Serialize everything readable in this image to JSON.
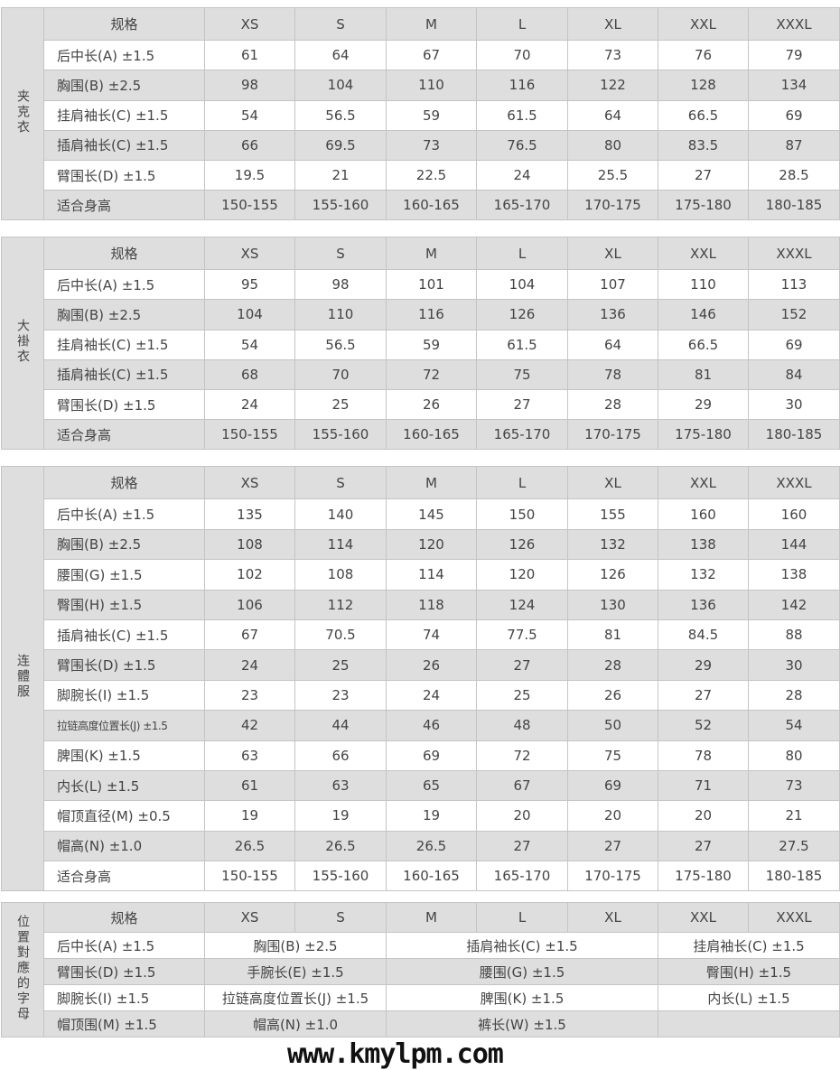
{
  "sizes": [
    "XS",
    "S",
    "M",
    "L",
    "XL",
    "XXL",
    "XXXL"
  ],
  "header_label": "规格",
  "tables": [
    {
      "side": "夹克衣",
      "rows": [
        {
          "label": "后中长(A) ±1.5",
          "values": [
            "61",
            "64",
            "67",
            "70",
            "73",
            "76",
            "79"
          ]
        },
        {
          "label": "胸围(B) ±2.5",
          "values": [
            "98",
            "104",
            "110",
            "116",
            "122",
            "128",
            "134"
          ]
        },
        {
          "label": "挂肩袖长(C) ±1.5",
          "values": [
            "54",
            "56.5",
            "59",
            "61.5",
            "64",
            "66.5",
            "69"
          ]
        },
        {
          "label": "插肩袖长(C) ±1.5",
          "values": [
            "66",
            "69.5",
            "73",
            "76.5",
            "80",
            "83.5",
            "87"
          ]
        },
        {
          "label": "臂围长(D) ±1.5",
          "values": [
            "19.5",
            "21",
            "22.5",
            "24",
            "25.5",
            "27",
            "28.5"
          ]
        },
        {
          "label": "适合身高",
          "values": [
            "150-155",
            "155-160",
            "160-165",
            "165-170",
            "170-175",
            "175-180",
            "180-185"
          ]
        }
      ]
    },
    {
      "side": "大褂衣",
      "rows": [
        {
          "label": "后中长(A) ±1.5",
          "values": [
            "95",
            "98",
            "101",
            "104",
            "107",
            "110",
            "113"
          ]
        },
        {
          "label": "胸围(B) ±2.5",
          "values": [
            "104",
            "110",
            "116",
            "126",
            "136",
            "146",
            "152"
          ]
        },
        {
          "label": "挂肩袖长(C) ±1.5",
          "values": [
            "54",
            "56.5",
            "59",
            "61.5",
            "64",
            "66.5",
            "69"
          ]
        },
        {
          "label": "插肩袖长(C) ±1.5",
          "values": [
            "68",
            "70",
            "72",
            "75",
            "78",
            "81",
            "84"
          ]
        },
        {
          "label": "臂围长(D) ±1.5",
          "values": [
            "24",
            "25",
            "26",
            "27",
            "28",
            "29",
            "30"
          ]
        },
        {
          "label": "适合身高",
          "values": [
            "150-155",
            "155-160",
            "160-165",
            "165-170",
            "170-175",
            "175-180",
            "180-185"
          ]
        }
      ]
    },
    {
      "side": "连體服",
      "rows": [
        {
          "label": "后中长(A) ±1.5",
          "values": [
            "135",
            "140",
            "145",
            "150",
            "155",
            "160",
            "160"
          ]
        },
        {
          "label": "胸围(B) ±2.5",
          "values": [
            "108",
            "114",
            "120",
            "126",
            "132",
            "138",
            "144"
          ]
        },
        {
          "label": "腰围(G) ±1.5",
          "values": [
            "102",
            "108",
            "114",
            "120",
            "126",
            "132",
            "138"
          ]
        },
        {
          "label": "臀围(H) ±1.5",
          "values": [
            "106",
            "112",
            "118",
            "124",
            "130",
            "136",
            "142"
          ]
        },
        {
          "label": "插肩袖长(C) ±1.5",
          "values": [
            "67",
            "70.5",
            "74",
            "77.5",
            "81",
            "84.5",
            "88"
          ]
        },
        {
          "label": "臂围长(D) ±1.5",
          "values": [
            "24",
            "25",
            "26",
            "27",
            "28",
            "29",
            "30"
          ]
        },
        {
          "label": "脚腕长(I) ±1.5",
          "values": [
            "23",
            "23",
            "24",
            "25",
            "26",
            "27",
            "28"
          ]
        },
        {
          "label": "拉链高度位置长(J) ±1.5",
          "values": [
            "42",
            "44",
            "46",
            "48",
            "50",
            "52",
            "54"
          ],
          "small": true
        },
        {
          "label": "脾围(K) ±1.5",
          "values": [
            "63",
            "66",
            "69",
            "72",
            "75",
            "78",
            "80"
          ]
        },
        {
          "label": "内长(L) ±1.5",
          "values": [
            "61",
            "63",
            "65",
            "67",
            "69",
            "71",
            "73"
          ]
        },
        {
          "label": "帽顶直径(M) ±0.5",
          "values": [
            "19",
            "19",
            "19",
            "20",
            "20",
            "20",
            "21"
          ]
        },
        {
          "label": "帽高(N) ±1.0",
          "values": [
            "26.5",
            "26.5",
            "26.5",
            "27",
            "27",
            "27",
            "27.5"
          ]
        },
        {
          "label": "适合身高",
          "values": [
            "150-155",
            "155-160",
            "160-165",
            "165-170",
            "170-175",
            "175-180",
            "180-185"
          ]
        }
      ]
    }
  ],
  "legend": {
    "side": "位置對應的字母",
    "rows": [
      [
        "后中长(A) ±1.5",
        "胸围(B) ±2.5",
        "插肩袖长(C) ±1.5",
        "挂肩袖长(C) ±1.5"
      ],
      [
        "臂围长(D) ±1.5",
        "手腕长(E) ±1.5",
        "腰围(G) ±1.5",
        "臀围(H) ±1.5"
      ],
      [
        "脚腕长(I) ±1.5",
        "拉链高度位置长(J) ±1.5",
        "脾围(K) ±1.5",
        "内长(L) ±1.5"
      ],
      [
        "帽顶围(M) ±1.5",
        "帽高(N) ±1.0",
        "裤长(W) ±1.5",
        ""
      ]
    ]
  },
  "watermark": "www.kmylpm.com"
}
